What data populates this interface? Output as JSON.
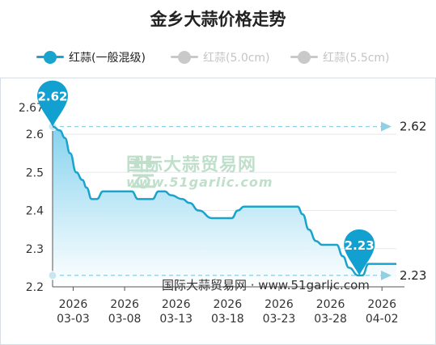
{
  "chart_data": {
    "type": "line",
    "title": "金乡大蒜价格走势",
    "xlabel": "",
    "ylabel": "",
    "x_ticks": [
      "2026\n03-03",
      "2026\n03-08",
      "2026\n03-13",
      "2026\n03-18",
      "2026\n03-23",
      "2026\n03-28",
      "2026\n04-02"
    ],
    "x_tick_year": [
      "2026",
      "2026",
      "2026",
      "2026",
      "2026",
      "2026",
      "2026"
    ],
    "x_tick_date": [
      "03-03",
      "03-08",
      "03-13",
      "03-18",
      "03-23",
      "03-28",
      "04-02"
    ],
    "y_ticks": [
      "2.2",
      "2.3",
      "2.4",
      "2.5",
      "2.6"
    ],
    "ylim": [
      2.2,
      2.67
    ],
    "y_max_label": "2.67",
    "xlim_days": [
      0.0,
      31.0
    ],
    "series": [
      {
        "name": "红蒜(一般混级)",
        "color": "#1aa3cc",
        "visible": true,
        "points": [
          [
            0.0,
            2.62
          ],
          [
            0.7,
            2.61
          ],
          [
            1.2,
            2.59
          ],
          [
            1.7,
            2.55
          ],
          [
            2.3,
            2.5
          ],
          [
            2.9,
            2.48
          ],
          [
            3.3,
            2.46
          ],
          [
            3.8,
            2.43
          ],
          [
            4.3,
            2.43
          ],
          [
            4.9,
            2.45
          ],
          [
            7.7,
            2.45
          ],
          [
            8.3,
            2.43
          ],
          [
            9.7,
            2.43
          ],
          [
            10.3,
            2.45
          ],
          [
            10.9,
            2.45
          ],
          [
            11.5,
            2.44
          ],
          [
            12.6,
            2.43
          ],
          [
            13.3,
            2.42
          ],
          [
            14.2,
            2.4
          ],
          [
            15.5,
            2.38
          ],
          [
            17.4,
            2.38
          ],
          [
            18.0,
            2.4
          ],
          [
            18.6,
            2.41
          ],
          [
            23.8,
            2.41
          ],
          [
            24.3,
            2.39
          ],
          [
            24.9,
            2.35
          ],
          [
            25.6,
            2.32
          ],
          [
            26.2,
            2.31
          ],
          [
            27.6,
            2.31
          ],
          [
            28.2,
            2.28
          ],
          [
            28.8,
            2.25
          ],
          [
            29.7,
            2.23
          ],
          [
            30.1,
            2.23
          ],
          [
            30.7,
            2.26
          ],
          [
            33.4,
            2.26
          ]
        ]
      },
      {
        "name": "红蒜(5.0cm)",
        "color": "#c9c9c9",
        "visible": false
      },
      {
        "name": "红蒜(5.5cm)",
        "color": "#c9c9c9",
        "visible": false
      }
    ],
    "max_value": 2.62,
    "min_value": 2.23,
    "max_label": "2.62",
    "min_label": "2.23",
    "markline_max_label": "2.62",
    "markline_min_label": "2.23",
    "grid": "horizontal",
    "legend_position": "top"
  },
  "watermark": {
    "line1": "国际大蒜贸易网",
    "line2": "www.51garlic.com"
  },
  "footer": "国际大蒜贸易网 · www.51garlic.com",
  "colors": {
    "accent": "#1aa3cc",
    "area_top": "#86d3ee",
    "markline": "#8fd0e4",
    "grid": "#e6e6e6",
    "disabled": "#c9c9c9"
  }
}
